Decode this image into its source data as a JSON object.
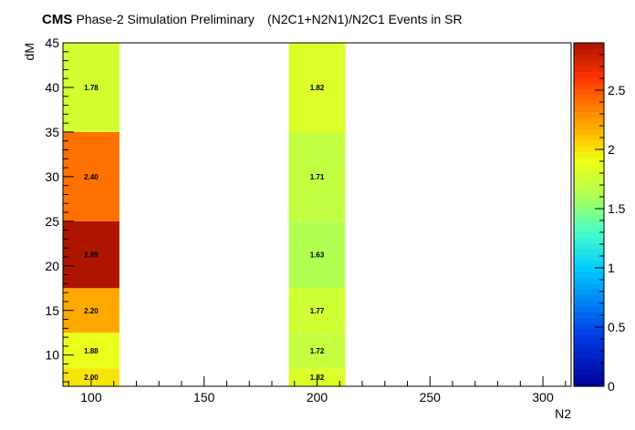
{
  "header": {
    "experiment": "CMS",
    "subtitle": "Phase-2 Simulation Preliminary",
    "title": "(N2C1+N2N1)/N2C1 Events in SR"
  },
  "chart_data": {
    "type": "heatmap",
    "title": "(N2C1+N2N1)/N2C1 Events in SR",
    "xlabel": "N2",
    "ylabel": "dM",
    "xlim": [
      87.5,
      312.5
    ],
    "ylim": [
      6.5,
      45
    ],
    "x_ticks": [
      100,
      150,
      200,
      250,
      300
    ],
    "y_ticks": [
      10,
      15,
      20,
      25,
      30,
      35,
      40,
      45
    ],
    "zlim": [
      0,
      2.9
    ],
    "z_ticks": [
      0,
      0.5,
      1,
      1.5,
      2,
      2.5
    ],
    "palette": "rainbow (blue to red)",
    "cells": [
      {
        "x0": 87.5,
        "x1": 112.5,
        "y0": 6.5,
        "y1": 8.5,
        "value": 2.0,
        "label": "2.00"
      },
      {
        "x0": 87.5,
        "x1": 112.5,
        "y0": 8.5,
        "y1": 12.5,
        "value": 1.88,
        "label": "1.88"
      },
      {
        "x0": 87.5,
        "x1": 112.5,
        "y0": 12.5,
        "y1": 17.5,
        "value": 2.2,
        "label": "2.20"
      },
      {
        "x0": 87.5,
        "x1": 112.5,
        "y0": 17.5,
        "y1": 25,
        "value": 2.89,
        "label": "2.89"
      },
      {
        "x0": 87.5,
        "x1": 112.5,
        "y0": 25,
        "y1": 35,
        "value": 2.4,
        "label": "2.40"
      },
      {
        "x0": 87.5,
        "x1": 112.5,
        "y0": 35,
        "y1": 45,
        "value": 1.78,
        "label": "1.78"
      },
      {
        "x0": 187.5,
        "x1": 212.5,
        "y0": 6.5,
        "y1": 8.5,
        "value": 1.82,
        "label": "1.82"
      },
      {
        "x0": 187.5,
        "x1": 212.5,
        "y0": 8.5,
        "y1": 12.5,
        "value": 1.72,
        "label": "1.72"
      },
      {
        "x0": 187.5,
        "x1": 212.5,
        "y0": 12.5,
        "y1": 17.5,
        "value": 1.77,
        "label": "1.77"
      },
      {
        "x0": 187.5,
        "x1": 212.5,
        "y0": 17.5,
        "y1": 25,
        "value": 1.63,
        "label": "1.63"
      },
      {
        "x0": 187.5,
        "x1": 212.5,
        "y0": 25,
        "y1": 35,
        "value": 1.71,
        "label": "1.71"
      },
      {
        "x0": 187.5,
        "x1": 212.5,
        "y0": 35,
        "y1": 45,
        "value": 1.82,
        "label": "1.82"
      }
    ]
  }
}
